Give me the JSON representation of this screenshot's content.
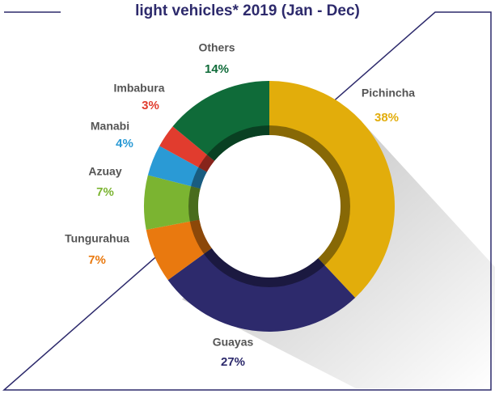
{
  "chart_data": {
    "type": "donut",
    "title": "light vehicles* 2019 (Jan - Dec)",
    "categories": [
      "Pichincha",
      "Guayas",
      "Tungurahua",
      "Azuay",
      "Manabi",
      "Imbabura",
      "Others"
    ],
    "values": [
      38,
      27,
      7,
      7,
      4,
      3,
      14
    ],
    "value_labels": [
      "38%",
      "27%",
      "7%",
      "7%",
      "4%",
      "3%",
      "14%"
    ],
    "colors": [
      "#e2ad0b",
      "#2d2a6c",
      "#e9790f",
      "#7bb431",
      "#2a9ad5",
      "#e13c2e",
      "#0f6b39"
    ]
  }
}
